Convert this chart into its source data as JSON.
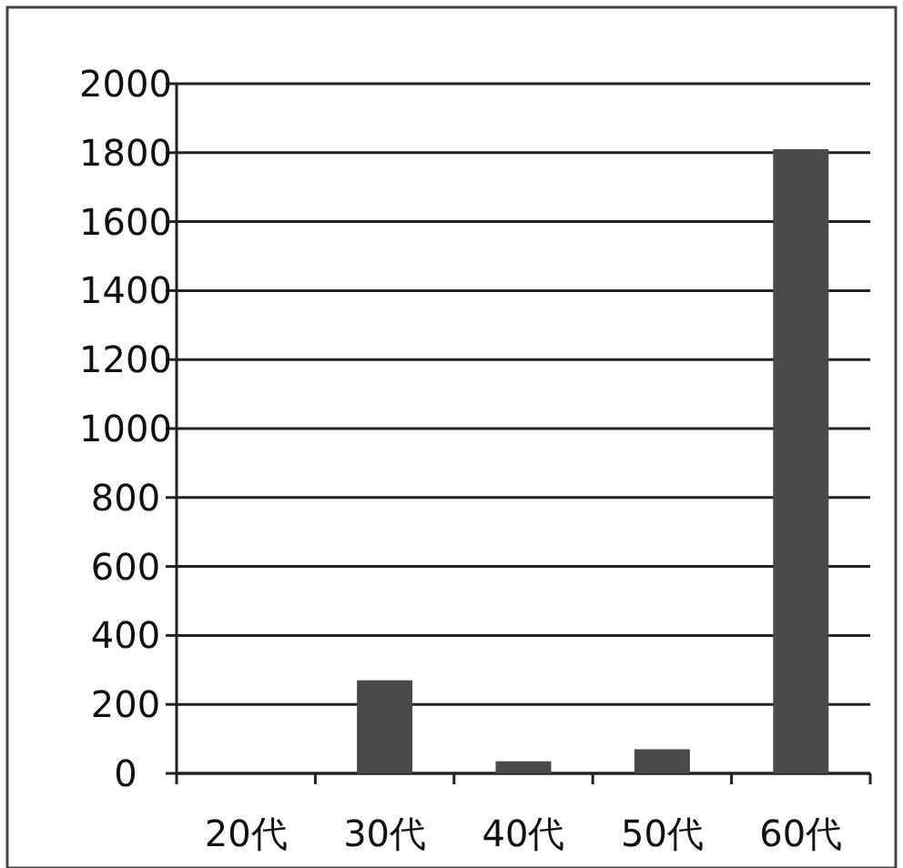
{
  "chart_data": {
    "type": "bar",
    "categories": [
      "20代",
      "30代",
      "40代",
      "50代",
      "60代"
    ],
    "values": [
      0,
      270,
      35,
      70,
      1810
    ],
    "color": "#4a4a4a",
    "ylim": [
      0,
      2000
    ],
    "yticks": [
      0,
      200,
      400,
      600,
      800,
      1000,
      1200,
      1400,
      1600,
      1800,
      2000
    ],
    "grid": "y"
  }
}
